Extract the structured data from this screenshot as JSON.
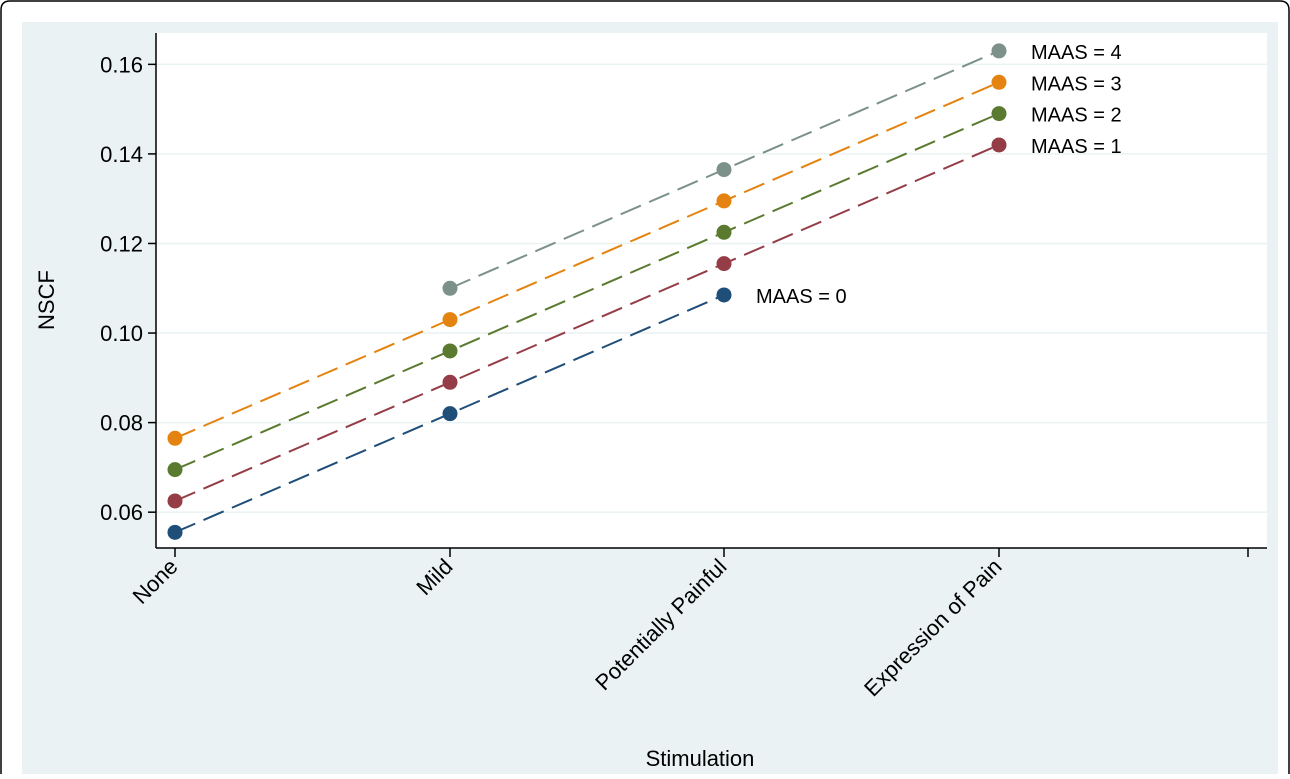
{
  "chart_data": {
    "type": "line",
    "xlabel": "Stimulation",
    "ylabel": "NSCF",
    "categories": [
      "None",
      "Mild",
      "Potentially Painful",
      "Expression of Pain"
    ],
    "ylim": [
      0.052,
      0.167
    ],
    "yticks": [
      "0.06",
      "0.08",
      "0.10",
      "0.12",
      "0.14",
      "0.16"
    ],
    "grid": true,
    "line_style": "dashed",
    "series": [
      {
        "name": "MAAS = 0",
        "color": "#1f4e79",
        "values": [
          0.0555,
          0.082,
          0.1085,
          null
        ]
      },
      {
        "name": "MAAS = 1",
        "color": "#943d47",
        "values": [
          0.0625,
          0.089,
          0.1155,
          0.142
        ]
      },
      {
        "name": "MAAS = 2",
        "color": "#5a7a2f",
        "values": [
          0.0695,
          0.096,
          0.1225,
          0.149
        ]
      },
      {
        "name": "MAAS = 3",
        "color": "#e4830f",
        "values": [
          0.0765,
          0.103,
          0.1295,
          0.156
        ]
      },
      {
        "name": "MAAS = 4",
        "color": "#7b9189",
        "values": [
          null,
          0.11,
          0.1365,
          0.163
        ]
      }
    ]
  }
}
